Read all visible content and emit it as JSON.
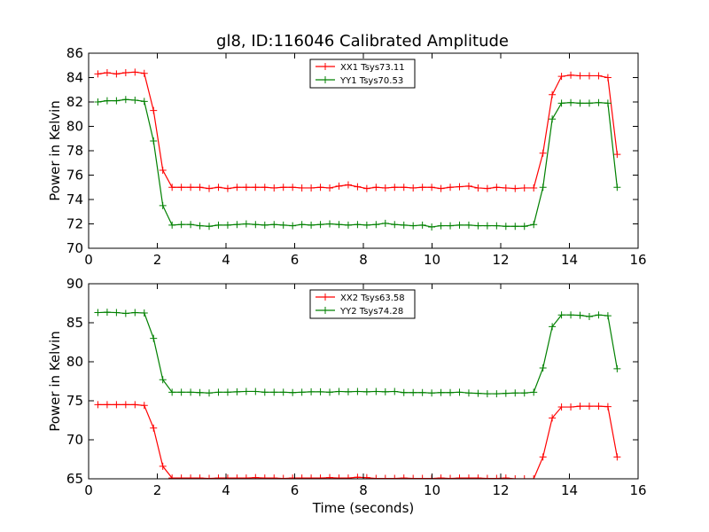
{
  "title": "gl8, ID:116046 Calibrated Amplitude",
  "chart_data": [
    {
      "type": "line",
      "ylabel": "Power in Kelvin",
      "xlabel": "",
      "xlim": [
        0,
        16
      ],
      "ylim": [
        70,
        86
      ],
      "xticks": [
        0,
        2,
        4,
        6,
        8,
        10,
        12,
        14,
        16
      ],
      "yticks": [
        70,
        72,
        74,
        76,
        78,
        80,
        82,
        84,
        86
      ],
      "legend_position": "top-center",
      "x": [
        0.27,
        0.54,
        0.81,
        1.08,
        1.35,
        1.62,
        1.89,
        2.16,
        2.43,
        2.7,
        2.97,
        3.24,
        3.51,
        3.78,
        4.05,
        4.32,
        4.59,
        4.86,
        5.13,
        5.4,
        5.67,
        5.94,
        6.21,
        6.48,
        6.75,
        7.02,
        7.29,
        7.56,
        7.83,
        8.1,
        8.37,
        8.64,
        8.91,
        9.18,
        9.45,
        9.72,
        9.99,
        10.26,
        10.53,
        10.8,
        11.07,
        11.34,
        11.61,
        11.88,
        12.15,
        12.42,
        12.69,
        12.96,
        13.23,
        13.5,
        13.77,
        14.04,
        14.31,
        14.58,
        14.85,
        15.12,
        15.39
      ],
      "series": [
        {
          "name": "XX1 Tsys73.11",
          "color": "#ff0000",
          "values": [
            84.3,
            84.4,
            84.3,
            84.4,
            84.45,
            84.35,
            81.3,
            76.4,
            75.0,
            75.0,
            75.0,
            75.0,
            74.9,
            75.0,
            74.9,
            75.0,
            75.0,
            75.0,
            75.0,
            74.95,
            75.0,
            75.0,
            74.95,
            74.95,
            75.0,
            74.95,
            75.1,
            75.2,
            75.05,
            74.9,
            75.0,
            74.95,
            75.0,
            75.0,
            74.95,
            75.0,
            75.0,
            74.9,
            75.0,
            75.05,
            75.1,
            74.95,
            74.9,
            75.0,
            74.95,
            74.9,
            74.95,
            74.95,
            77.8,
            82.6,
            84.1,
            84.2,
            84.15,
            84.15,
            84.15,
            84.0,
            77.7
          ]
        },
        {
          "name": "YY1 Tsys70.53",
          "color": "#008000",
          "values": [
            82.0,
            82.1,
            82.1,
            82.2,
            82.15,
            82.05,
            78.8,
            73.5,
            71.9,
            71.95,
            71.95,
            71.85,
            71.8,
            71.9,
            71.9,
            71.95,
            72.0,
            71.95,
            71.9,
            71.95,
            71.9,
            71.85,
            71.95,
            71.9,
            71.95,
            72.0,
            71.95,
            71.9,
            71.95,
            71.9,
            71.95,
            72.05,
            71.95,
            71.9,
            71.85,
            71.9,
            71.75,
            71.85,
            71.85,
            71.9,
            71.9,
            71.85,
            71.85,
            71.85,
            71.8,
            71.8,
            71.8,
            71.95,
            75.0,
            80.6,
            81.9,
            81.95,
            81.9,
            81.9,
            81.95,
            81.9,
            75.0
          ]
        }
      ]
    },
    {
      "type": "line",
      "ylabel": "Power in Kelvin",
      "xlabel": "Time (seconds)",
      "xlim": [
        0,
        16
      ],
      "ylim": [
        65,
        90
      ],
      "xticks": [
        0,
        2,
        4,
        6,
        8,
        10,
        12,
        14,
        16
      ],
      "yticks": [
        65,
        70,
        75,
        80,
        85,
        90
      ],
      "legend_position": "top-center",
      "x": [
        0.27,
        0.54,
        0.81,
        1.08,
        1.35,
        1.62,
        1.89,
        2.16,
        2.43,
        2.7,
        2.97,
        3.24,
        3.51,
        3.78,
        4.05,
        4.32,
        4.59,
        4.86,
        5.13,
        5.4,
        5.67,
        5.94,
        6.21,
        6.48,
        6.75,
        7.02,
        7.29,
        7.56,
        7.83,
        8.1,
        8.37,
        8.64,
        8.91,
        9.18,
        9.45,
        9.72,
        9.99,
        10.26,
        10.53,
        10.8,
        11.07,
        11.34,
        11.61,
        11.88,
        12.15,
        12.42,
        12.69,
        12.96,
        13.23,
        13.5,
        13.77,
        14.04,
        14.31,
        14.58,
        14.85,
        15.12,
        15.39
      ],
      "series": [
        {
          "name": "XX2 Tsys63.58",
          "color": "#ff0000",
          "values": [
            74.5,
            74.5,
            74.5,
            74.5,
            74.5,
            74.4,
            71.5,
            66.6,
            65.1,
            65.1,
            65.1,
            65.1,
            65.05,
            65.1,
            65.1,
            65.1,
            65.1,
            65.15,
            65.1,
            65.1,
            65.05,
            65.1,
            65.1,
            65.1,
            65.1,
            65.15,
            65.1,
            65.1,
            65.2,
            65.15,
            65.05,
            65.05,
            65.05,
            65.1,
            65.05,
            65.05,
            65.05,
            65.1,
            65.05,
            65.1,
            65.1,
            65.1,
            65.05,
            65.05,
            65.1,
            65.0,
            65.0,
            65.0,
            67.8,
            72.8,
            74.2,
            74.2,
            74.3,
            74.3,
            74.3,
            74.25,
            67.8
          ]
        },
        {
          "name": "YY2 Tsys74.28",
          "color": "#008000",
          "values": [
            86.3,
            86.35,
            86.3,
            86.2,
            86.3,
            86.25,
            83.0,
            77.7,
            76.1,
            76.1,
            76.1,
            76.05,
            76.0,
            76.1,
            76.1,
            76.15,
            76.2,
            76.2,
            76.1,
            76.1,
            76.1,
            76.05,
            76.1,
            76.15,
            76.15,
            76.1,
            76.2,
            76.15,
            76.2,
            76.15,
            76.2,
            76.15,
            76.2,
            76.05,
            76.05,
            76.05,
            76.0,
            76.05,
            76.05,
            76.1,
            76.0,
            75.95,
            75.9,
            75.9,
            75.95,
            76.0,
            76.0,
            76.1,
            79.2,
            84.5,
            86.0,
            86.0,
            85.95,
            85.8,
            86.0,
            85.9,
            79.1
          ]
        }
      ]
    }
  ]
}
